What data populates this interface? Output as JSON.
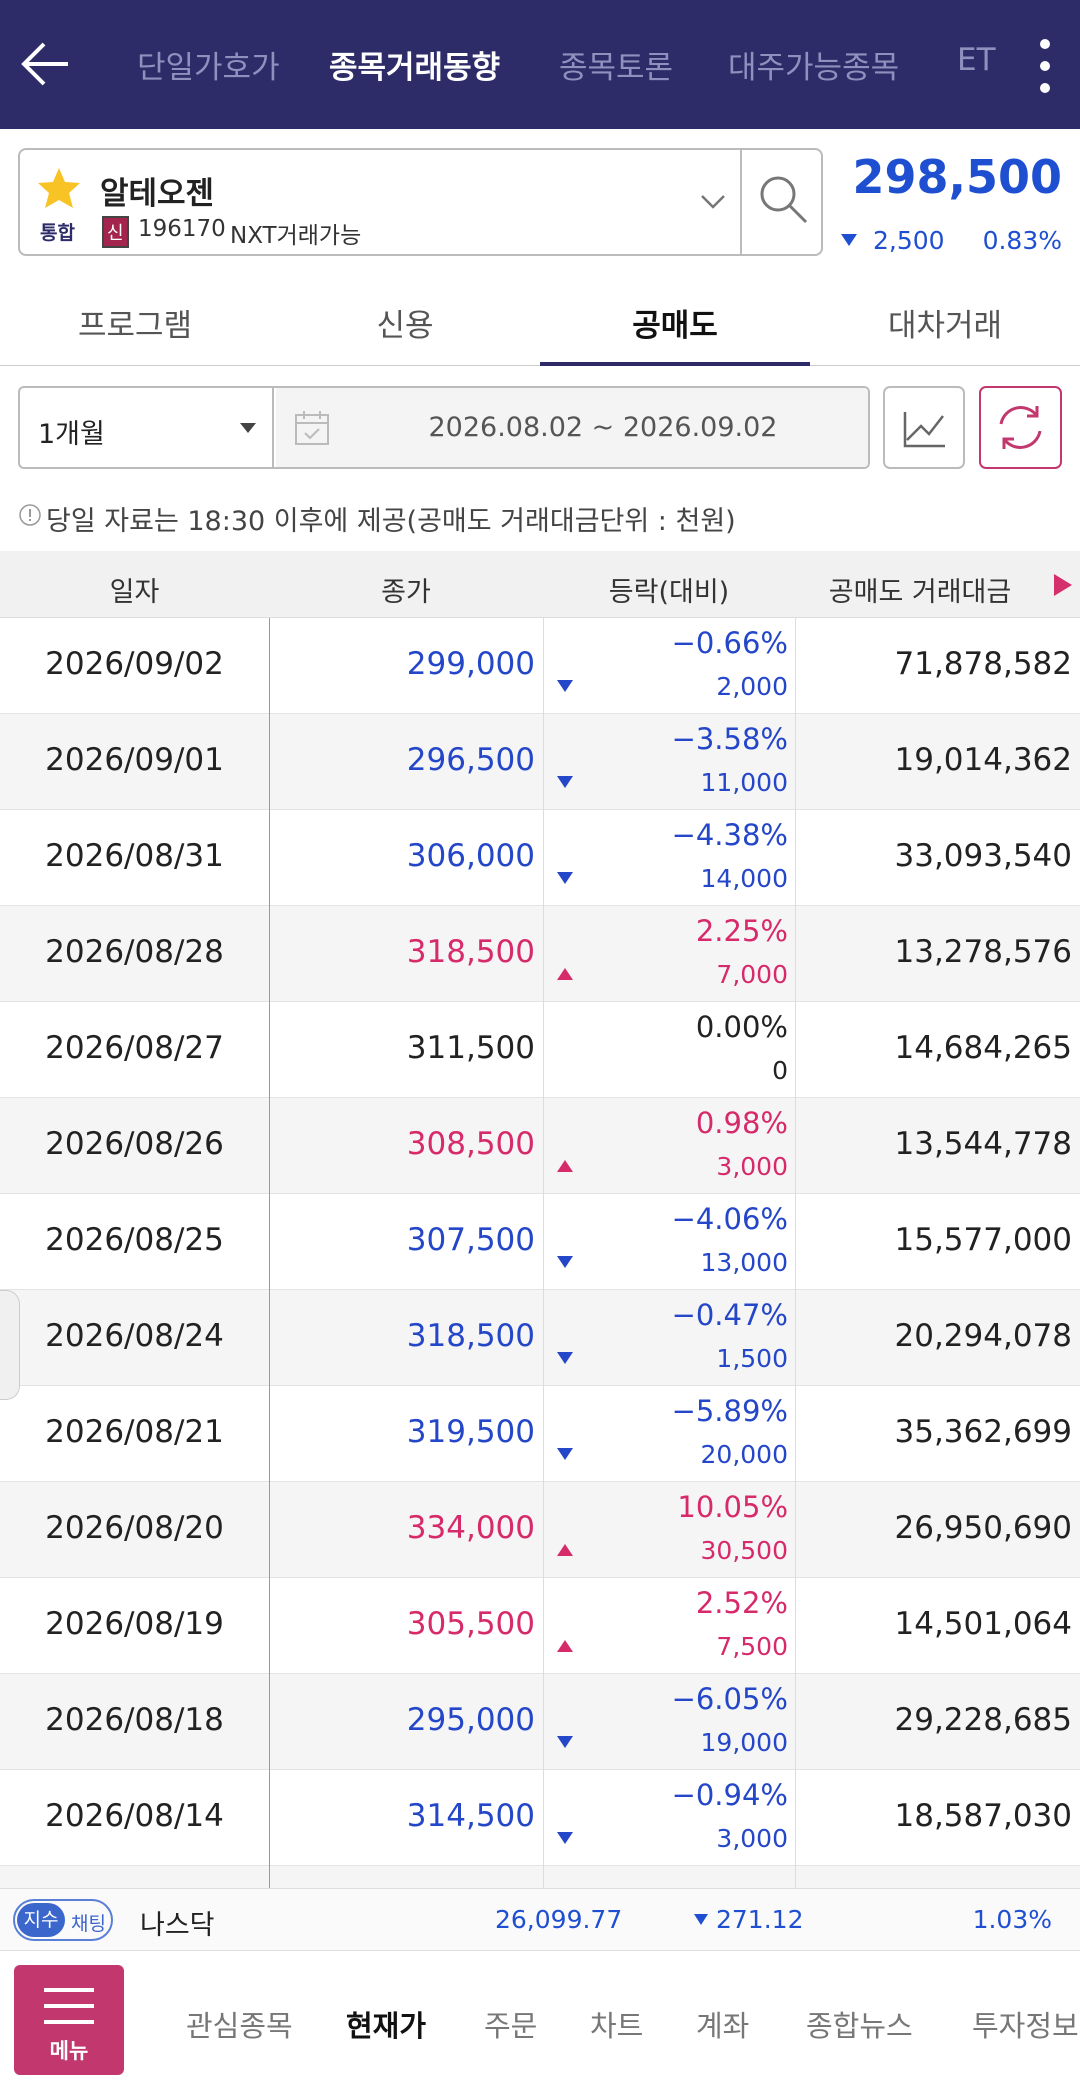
{
  "top_tabs": [
    "단일가호가",
    "종목거래동향",
    "종목토론",
    "대주가능종목",
    "ET"
  ],
  "stock": {
    "name": "알테오젠",
    "market": "통합",
    "credit": "신",
    "code": "196170",
    "nxt": "NXT거래가능",
    "price": "298,500",
    "change": "2,500",
    "rate": "0.83%"
  },
  "sub_tabs": [
    "프로그램",
    "신용",
    "공매도",
    "대차거래"
  ],
  "filter": {
    "period": "1개월",
    "date_range": "2026.08.02 ~ 2026.09.02"
  },
  "note": "당일 자료는 18:30 이후에 제공(공매도 거래대금단위 : 천원)",
  "table": {
    "headers": [
      "일자",
      "종가",
      "등락(대비)",
      "공매도 거래대금"
    ],
    "rows": [
      [
        "2026/09/02",
        "299,000",
        "−0.66%",
        "2,000",
        "71,878,582"
      ],
      [
        "2026/09/01",
        "296,500",
        "−3.58%",
        "11,000",
        "19,014,362"
      ],
      [
        "2026/08/31",
        "306,000",
        "−4.38%",
        "14,000",
        "33,093,540"
      ],
      [
        "2026/08/28",
        "318,500",
        "2.25%",
        "7,000",
        "13,278,576"
      ],
      [
        "2026/08/27",
        "311,500",
        "0.00%",
        "0",
        "14,684,265"
      ],
      [
        "2026/08/26",
        "308,500",
        "0.98%",
        "3,000",
        "13,544,778"
      ],
      [
        "2026/08/25",
        "307,500",
        "−4.06%",
        "13,000",
        "15,577,000"
      ],
      [
        "2026/08/24",
        "318,500",
        "−0.47%",
        "1,500",
        "20,294,078"
      ],
      [
        "2026/08/21",
        "319,500",
        "−5.89%",
        "20,000",
        "35,362,699"
      ],
      [
        "2026/08/20",
        "334,000",
        "10.05%",
        "30,500",
        "26,950,690"
      ],
      [
        "2026/08/19",
        "305,500",
        "2.52%",
        "7,500",
        "14,501,064"
      ],
      [
        "2026/08/18",
        "295,000",
        "−6.05%",
        "19,000",
        "29,228,685"
      ],
      [
        "2026/08/14",
        "314,500",
        "−0.94%",
        "3,000",
        "18,587,030"
      ]
    ]
  },
  "index_bar": {
    "badge": "지수",
    "chat": "채팅",
    "name": "나스닥",
    "value": "26,099.77",
    "change": "271.12",
    "rate": "1.03%"
  },
  "bottom_nav": {
    "menu": "메뉴",
    "items": [
      "관심종목",
      "현재가",
      "주문",
      "차트",
      "계좌",
      "종합뉴스",
      "투자정보"
    ]
  }
}
